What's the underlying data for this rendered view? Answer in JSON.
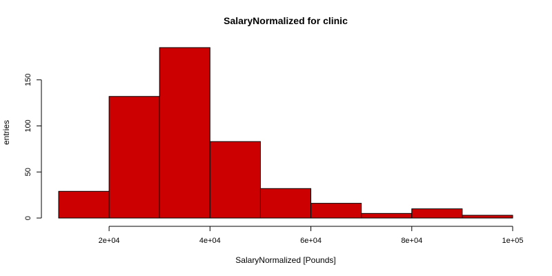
{
  "chart_data": {
    "type": "bar",
    "title": "SalaryNormalized for clinic",
    "xlabel": "SalaryNormalized [Pounds]",
    "ylabel": "entries",
    "bins": [
      {
        "x0": 10000,
        "x1": 20000,
        "count": 29
      },
      {
        "x0": 20000,
        "x1": 30000,
        "count": 132
      },
      {
        "x0": 30000,
        "x1": 40000,
        "count": 185
      },
      {
        "x0": 40000,
        "x1": 50000,
        "count": 83
      },
      {
        "x0": 50000,
        "x1": 60000,
        "count": 32
      },
      {
        "x0": 60000,
        "x1": 70000,
        "count": 16
      },
      {
        "x0": 70000,
        "x1": 80000,
        "count": 5
      },
      {
        "x0": 80000,
        "x1": 90000,
        "count": 10
      },
      {
        "x0": 90000,
        "x1": 100000,
        "count": 3
      }
    ],
    "xticks": [
      {
        "value": 20000,
        "label": "2e+04"
      },
      {
        "value": 40000,
        "label": "4e+04"
      },
      {
        "value": 60000,
        "label": "6e+04"
      },
      {
        "value": 80000,
        "label": "8e+04"
      },
      {
        "value": 100000,
        "label": "1e+05"
      }
    ],
    "yticks": [
      {
        "value": 0,
        "label": "0"
      },
      {
        "value": 50,
        "label": "50"
      },
      {
        "value": 100,
        "label": "100"
      },
      {
        "value": 150,
        "label": "150"
      }
    ],
    "xlim": [
      10000,
      100000
    ],
    "ylim": [
      0,
      185
    ],
    "bar_color": "#CC0000",
    "grid": false,
    "legend": "none"
  }
}
